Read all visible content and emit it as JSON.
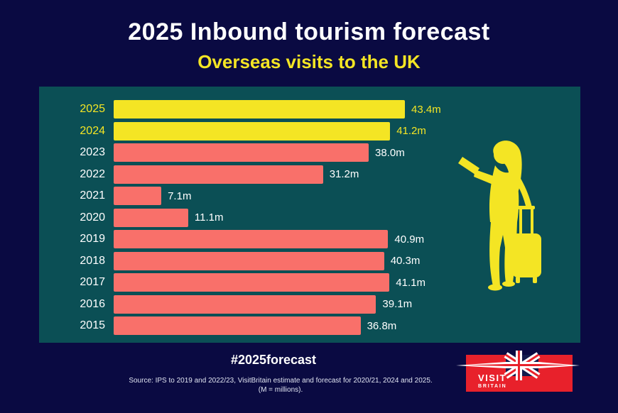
{
  "page": {
    "background_color": "#0a0a42"
  },
  "header": {
    "title": "2025 Inbound tourism forecast",
    "subtitle": "Overseas visits to the UK"
  },
  "chart_data": {
    "type": "bar",
    "orientation": "horizontal",
    "title": "2025 Inbound tourism forecast",
    "subtitle": "Overseas visits to the UK",
    "categories": [
      "2025",
      "2024",
      "2023",
      "2022",
      "2021",
      "2020",
      "2019",
      "2018",
      "2017",
      "2016",
      "2015"
    ],
    "values": [
      43.4,
      41.2,
      38.0,
      31.2,
      7.1,
      11.1,
      40.9,
      40.3,
      41.1,
      39.1,
      36.8
    ],
    "value_labels": [
      "43.4m",
      "41.2m",
      "38.0m",
      "31.2m",
      "7.1m",
      "11.1m",
      "40.9m",
      "40.3m",
      "41.1m",
      "39.1m",
      "36.8m"
    ],
    "unit": "millions of visits",
    "xlim": [
      0,
      45
    ],
    "grid": false,
    "legend": false,
    "highlighted": [
      "2025",
      "2024"
    ],
    "colors": {
      "highlight_bar": "#f4e524",
      "default_bar": "#f9706a",
      "highlight_label": "#f4e524",
      "default_label": "#ffffff",
      "panel_background": "#0b4f55"
    }
  },
  "illustration": {
    "name": "traveller-with-suitcase-silhouette",
    "color": "#f4e524"
  },
  "footer": {
    "hashtag": "#2025forecast",
    "source_line1": "Source: IPS to 2019 and 2022/23, VisitBritain estimate and forecast for 2020/21, 2024 and 2025.",
    "source_line2": "(M = millions).",
    "logo": {
      "line1": "VISIT",
      "line2": "BRITAIN",
      "background": "#e8212b",
      "flag_field": "#131b4d"
    }
  }
}
